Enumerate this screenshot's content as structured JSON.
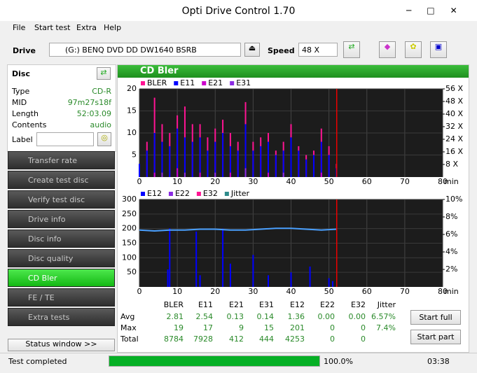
{
  "window": {
    "title": "Opti Drive Control 1.70"
  },
  "menu": [
    "File",
    "Start test",
    "Extra",
    "Help"
  ],
  "toolbar": {
    "drive_label": "Drive",
    "drive": "(G:)  BENQ DVD DD DW1640 BSRB",
    "speed_label": "Speed",
    "speed": "48 X"
  },
  "disc": {
    "header": "Disc",
    "rows": [
      [
        "Type",
        "CD-R"
      ],
      [
        "MID",
        "97m27s18f"
      ],
      [
        "Length",
        "52:03.09"
      ],
      [
        "Contents",
        "audio"
      ]
    ],
    "label_field": "Label"
  },
  "nav": [
    "Transfer rate",
    "Create test disc",
    "Verify test disc",
    "Drive info",
    "Disc info",
    "Disc quality",
    "CD Bler",
    "FE / TE",
    "Extra tests"
  ],
  "status_button": "Status window >>",
  "panel_title": "CD Bler",
  "chart_data": [
    {
      "type": "bar",
      "x": [
        0,
        2,
        4,
        6,
        8,
        10,
        12,
        14,
        16,
        18,
        20,
        22,
        24,
        26,
        28,
        30,
        32,
        34,
        36,
        38,
        40,
        42,
        44,
        46,
        48,
        50,
        52
      ],
      "series": [
        {
          "name": "BLER",
          "color": "#ff1493",
          "values": [
            3,
            8,
            18,
            12,
            10,
            14,
            16,
            12,
            12,
            9,
            11,
            13,
            10,
            8,
            17,
            8,
            9,
            10,
            6,
            8,
            12,
            7,
            5,
            6,
            11,
            7,
            3
          ]
        },
        {
          "name": "E11",
          "color": "#0000ff",
          "values": [
            3,
            6,
            10,
            8,
            7,
            11,
            9,
            8,
            9,
            6,
            8,
            10,
            7,
            6,
            12,
            6,
            7,
            8,
            5,
            6,
            9,
            6,
            4,
            5,
            8,
            5,
            2
          ]
        },
        {
          "name": "E21",
          "color": "#cc00cc",
          "values": [
            0,
            0,
            1,
            0,
            0,
            2,
            0,
            0,
            1,
            0,
            0,
            0,
            1,
            0,
            0,
            0,
            0,
            1,
            0,
            0,
            0,
            0,
            0,
            0,
            1,
            0,
            0
          ]
        },
        {
          "name": "E31",
          "color": "#8a2be2",
          "values": [
            0,
            0,
            0,
            1,
            0,
            0,
            1,
            0,
            0,
            0,
            1,
            0,
            0,
            0,
            2,
            0,
            0,
            0,
            0,
            1,
            0,
            0,
            0,
            0,
            0,
            0,
            0
          ]
        }
      ],
      "xlim": [
        0,
        80
      ],
      "xticks": [
        0,
        10,
        20,
        30,
        40,
        50,
        60,
        70,
        80
      ],
      "xlabel": "min",
      "ylim": [
        0,
        20
      ],
      "yticks": [
        5,
        10,
        15,
        20
      ],
      "y2lim": [
        0,
        56
      ],
      "y2ticks": [
        {
          "value": 8,
          "label": "8 X"
        },
        {
          "value": 16,
          "label": "16 X"
        },
        {
          "value": 24,
          "label": "24 X"
        },
        {
          "value": 32,
          "label": "32 X"
        },
        {
          "value": 40,
          "label": "40 X"
        },
        {
          "value": 48,
          "label": "48 X"
        },
        {
          "value": 56,
          "label": "56 X"
        }
      ],
      "disc_end": 52.05,
      "grid": true
    },
    {
      "type": "bar",
      "series": [
        {
          "name": "E12",
          "color": "#0000ff",
          "x": [
            7.5,
            8,
            15,
            16,
            22,
            24,
            30,
            34,
            40,
            45,
            50,
            51
          ],
          "values": [
            60,
            201,
            190,
            40,
            200,
            80,
            110,
            40,
            50,
            70,
            30,
            20
          ]
        },
        {
          "name": "E22",
          "color": "#8a2be2",
          "x": [
            7.5,
            8,
            15,
            16,
            22,
            24,
            30,
            34,
            40,
            45,
            50,
            51
          ],
          "values": [
            0,
            0,
            0,
            0,
            0,
            0,
            0,
            0,
            0,
            0,
            0,
            0
          ]
        },
        {
          "name": "E32",
          "color": "#ff1493",
          "x": [
            7.5,
            8,
            15,
            16,
            22,
            24,
            30,
            34,
            40,
            45,
            50,
            51
          ],
          "values": [
            0,
            0,
            0,
            0,
            0,
            0,
            0,
            0,
            0,
            0,
            0,
            0
          ]
        },
        {
          "name": "Jitter",
          "color": "#2e8b8b",
          "axis": "y2",
          "x": [
            0,
            4,
            8,
            12,
            16,
            20,
            24,
            28,
            32,
            36,
            40,
            44,
            48,
            52
          ],
          "values": [
            6.5,
            6.4,
            6.5,
            6.5,
            6.6,
            6.6,
            6.5,
            6.5,
            6.6,
            6.7,
            6.7,
            6.6,
            6.5,
            6.6
          ],
          "line_color": "#4aa0ff"
        }
      ],
      "xlim": [
        0,
        80
      ],
      "xticks": [
        0,
        10,
        20,
        30,
        40,
        50,
        60,
        70,
        80
      ],
      "xlabel": "min",
      "ylim": [
        0,
        300
      ],
      "yticks": [
        50,
        100,
        150,
        200,
        250,
        300
      ],
      "y2lim": [
        0,
        10
      ],
      "y2ticks": [
        {
          "value": 2,
          "label": "2%"
        },
        {
          "value": 4,
          "label": "4%"
        },
        {
          "value": 6,
          "label": "6%"
        },
        {
          "value": 8,
          "label": "8%"
        },
        {
          "value": 10,
          "label": "10%"
        }
      ],
      "disc_end": 52.05,
      "grid": true
    }
  ],
  "stats": {
    "header": [
      "BLER",
      "E11",
      "E21",
      "E31",
      "E12",
      "E22",
      "E32",
      "Jitter"
    ],
    "rows": [
      {
        "label": "Avg",
        "cells": [
          "2.81",
          "2.54",
          "0.13",
          "0.14",
          "1.36",
          "0.00",
          "0.00",
          "6.57%"
        ]
      },
      {
        "label": "Max",
        "cells": [
          "19",
          "17",
          "9",
          "15",
          "201",
          "0",
          "0",
          "7.4%"
        ]
      },
      {
        "label": "Total",
        "cells": [
          "8784",
          "7928",
          "412",
          "444",
          "4253",
          "0",
          "0"
        ]
      }
    ]
  },
  "buttons": [
    "Start full",
    "Start part"
  ],
  "status": {
    "text": "Test completed",
    "progress": 100,
    "progress_label": "100.0%",
    "time": "03:38"
  }
}
